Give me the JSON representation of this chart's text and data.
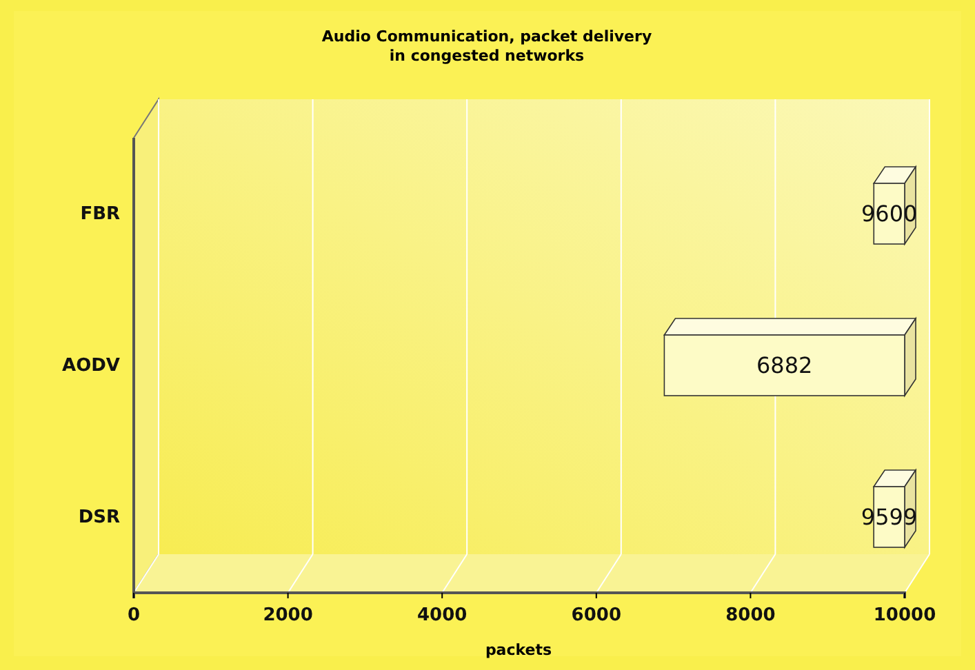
{
  "chart_data": {
    "type": "bar",
    "orientation": "horizontal",
    "title": "Audio Communication, packet delivery\nin congested networks",
    "xlabel": "packets",
    "categories": [
      "FBR",
      "AODV",
      "DSR"
    ],
    "base": [
      9600,
      6882,
      9599
    ],
    "values": [
      400,
      3118,
      401
    ],
    "annotations": [
      "9600",
      "6882",
      "9599"
    ],
    "color": "#fdfbc6",
    "xlim": [
      0,
      10000
    ],
    "xticks": [
      0,
      2000,
      4000,
      6000,
      8000,
      10000
    ],
    "grid": "x"
  }
}
